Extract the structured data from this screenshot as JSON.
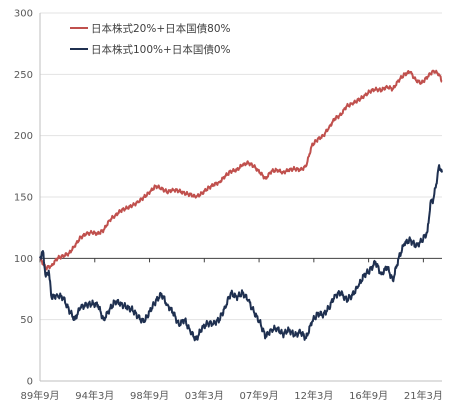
{
  "chart_data": {
    "type": "line",
    "title": "",
    "xlabel": "",
    "ylabel": "",
    "ylim": [
      0,
      300
    ],
    "y_ticks": [
      0,
      50,
      100,
      150,
      200,
      250,
      300
    ],
    "x_tick_labels": [
      "89年9月",
      "94年3月",
      "98年9月",
      "03年3月",
      "07年9月",
      "12年3月",
      "16年9月",
      "21年3月"
    ],
    "x_range": [
      "1989-09",
      "2024-06"
    ],
    "grid": "horizontal",
    "legend_position": "top-left",
    "baseline": 100,
    "series": [
      {
        "name": "日本株式20%+日本国債80%",
        "color": "#c0504d",
        "points": [
          [
            "1989-09",
            100
          ],
          [
            "1990-03",
            92
          ],
          [
            "1990-09",
            94
          ],
          [
            "1991-03",
            100
          ],
          [
            "1991-09",
            102
          ],
          [
            "1992-03",
            104
          ],
          [
            "1992-09",
            110
          ],
          [
            "1993-03",
            117
          ],
          [
            "1993-09",
            120
          ],
          [
            "1994-03",
            121
          ],
          [
            "1994-09",
            120
          ],
          [
            "1995-03",
            123
          ],
          [
            "1995-09",
            131
          ],
          [
            "1996-03",
            135
          ],
          [
            "1996-09",
            139
          ],
          [
            "1997-03",
            141
          ],
          [
            "1997-09",
            143
          ],
          [
            "1998-03",
            146
          ],
          [
            "1998-09",
            150
          ],
          [
            "1999-03",
            154
          ],
          [
            "1999-09",
            159
          ],
          [
            "2000-03",
            157
          ],
          [
            "2000-09",
            154
          ],
          [
            "2001-03",
            156
          ],
          [
            "2001-09",
            155
          ],
          [
            "2002-03",
            153
          ],
          [
            "2002-09",
            152
          ],
          [
            "2003-03",
            150
          ],
          [
            "2003-09",
            153
          ],
          [
            "2004-03",
            157
          ],
          [
            "2004-09",
            160
          ],
          [
            "2005-03",
            162
          ],
          [
            "2005-09",
            167
          ],
          [
            "2006-03",
            171
          ],
          [
            "2006-09",
            172
          ],
          [
            "2007-03",
            176
          ],
          [
            "2007-09",
            178
          ],
          [
            "2008-03",
            175
          ],
          [
            "2008-09",
            170
          ],
          [
            "2009-03",
            165
          ],
          [
            "2009-09",
            171
          ],
          [
            "2010-03",
            172
          ],
          [
            "2010-09",
            170
          ],
          [
            "2011-03",
            172
          ],
          [
            "2011-09",
            173
          ],
          [
            "2012-03",
            172
          ],
          [
            "2012-09",
            175
          ],
          [
            "2013-03",
            192
          ],
          [
            "2013-09",
            197
          ],
          [
            "2014-03",
            200
          ],
          [
            "2014-09",
            207
          ],
          [
            "2015-03",
            214
          ],
          [
            "2015-09",
            217
          ],
          [
            "2016-03",
            224
          ],
          [
            "2016-09",
            226
          ],
          [
            "2017-03",
            229
          ],
          [
            "2017-09",
            232
          ],
          [
            "2018-03",
            236
          ],
          [
            "2018-09",
            238
          ],
          [
            "2019-03",
            237
          ],
          [
            "2019-09",
            240
          ],
          [
            "2020-03",
            238
          ],
          [
            "2020-09",
            245
          ],
          [
            "2021-03",
            250
          ],
          [
            "2021-09",
            252
          ],
          [
            "2022-03",
            245
          ],
          [
            "2022-09",
            243
          ],
          [
            "2023-03",
            248
          ],
          [
            "2023-09",
            253
          ],
          [
            "2024-03",
            250
          ],
          [
            "2024-06",
            244
          ]
        ]
      },
      {
        "name": "日本株式100%+日本国債0%",
        "color": "#1f3050",
        "points": [
          [
            "1989-09",
            100
          ],
          [
            "1989-12",
            106
          ],
          [
            "1990-03",
            85
          ],
          [
            "1990-06",
            90
          ],
          [
            "1990-09",
            68
          ],
          [
            "1991-03",
            70
          ],
          [
            "1991-09",
            68
          ],
          [
            "1992-03",
            58
          ],
          [
            "1992-09",
            50
          ],
          [
            "1993-03",
            60
          ],
          [
            "1993-09",
            62
          ],
          [
            "1994-03",
            63
          ],
          [
            "1994-09",
            62
          ],
          [
            "1995-03",
            50
          ],
          [
            "1995-09",
            58
          ],
          [
            "1996-03",
            65
          ],
          [
            "1996-09",
            63
          ],
          [
            "1997-03",
            60
          ],
          [
            "1997-09",
            58
          ],
          [
            "1998-03",
            52
          ],
          [
            "1998-09",
            48
          ],
          [
            "1999-03",
            57
          ],
          [
            "1999-09",
            65
          ],
          [
            "2000-03",
            71
          ],
          [
            "2000-09",
            62
          ],
          [
            "2001-03",
            56
          ],
          [
            "2001-09",
            46
          ],
          [
            "2002-03",
            50
          ],
          [
            "2002-09",
            40
          ],
          [
            "2003-03",
            34
          ],
          [
            "2003-09",
            43
          ],
          [
            "2004-03",
            47
          ],
          [
            "2004-09",
            47
          ],
          [
            "2005-03",
            50
          ],
          [
            "2005-09",
            60
          ],
          [
            "2006-03",
            72
          ],
          [
            "2006-09",
            68
          ],
          [
            "2007-03",
            72
          ],
          [
            "2007-09",
            66
          ],
          [
            "2008-03",
            56
          ],
          [
            "2008-09",
            48
          ],
          [
            "2009-03",
            36
          ],
          [
            "2009-09",
            42
          ],
          [
            "2010-03",
            43
          ],
          [
            "2010-09",
            38
          ],
          [
            "2011-03",
            42
          ],
          [
            "2011-09",
            37
          ],
          [
            "2012-03",
            40
          ],
          [
            "2012-09",
            35
          ],
          [
            "2013-03",
            48
          ],
          [
            "2013-09",
            55
          ],
          [
            "2014-03",
            54
          ],
          [
            "2014-09",
            60
          ],
          [
            "2015-03",
            70
          ],
          [
            "2015-09",
            72
          ],
          [
            "2016-03",
            66
          ],
          [
            "2016-09",
            70
          ],
          [
            "2017-03",
            77
          ],
          [
            "2017-09",
            86
          ],
          [
            "2018-03",
            90
          ],
          [
            "2018-09",
            97
          ],
          [
            "2019-03",
            87
          ],
          [
            "2019-09",
            93
          ],
          [
            "2020-03",
            82
          ],
          [
            "2020-09",
            100
          ],
          [
            "2021-03",
            112
          ],
          [
            "2021-09",
            115
          ],
          [
            "2022-03",
            110
          ],
          [
            "2022-09",
            114
          ],
          [
            "2023-03",
            122
          ],
          [
            "2023-06",
            145
          ],
          [
            "2023-09",
            148
          ],
          [
            "2024-01",
            165
          ],
          [
            "2024-03",
            176
          ],
          [
            "2024-06",
            170
          ]
        ]
      }
    ]
  }
}
